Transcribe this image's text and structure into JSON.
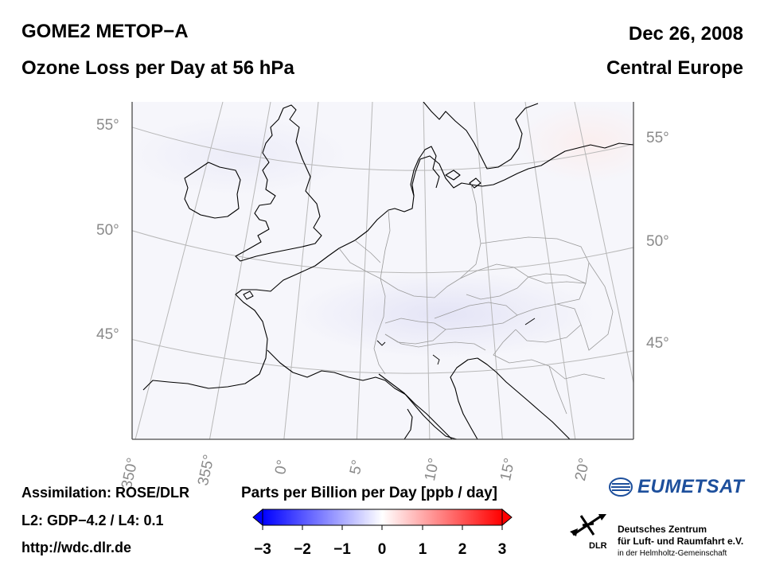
{
  "header": {
    "instrument": "GOME2 METOP−A",
    "product": "Ozone Loss per Day at 56 hPa",
    "date": "Dec 26, 2008",
    "region": "Central Europe"
  },
  "map": {
    "lat_labels_left": [
      "55°",
      "50°",
      "45°"
    ],
    "lat_labels_right": [
      "55°",
      "50°",
      "45°"
    ],
    "lon_labels": [
      "350°",
      "355°",
      "0°",
      "5°",
      "10°",
      "15°",
      "20°"
    ]
  },
  "footer": {
    "assimilation": "Assimilation: ROSE/DLR",
    "levels": "L2: GDP−4.2 / L4: 0.1",
    "url": "http://wdc.dlr.de"
  },
  "colorbar": {
    "title": "Parts per Billion per Day [ppb / day]",
    "ticks": [
      "−3",
      "−2",
      "−1",
      "0",
      "1",
      "2",
      "3"
    ],
    "colors": {
      "min": "#0000ff",
      "mid": "#ffffff",
      "max": "#ff0000"
    }
  },
  "logos": {
    "eumetsat": "EUMETSAT",
    "dlr_abbr": "DLR",
    "dlr_line1": "Deutsches Zentrum",
    "dlr_line2": "für Luft- und Raumfahrt e.V.",
    "dlr_line3": "in der Helmholtz-Gemeinschaft"
  }
}
